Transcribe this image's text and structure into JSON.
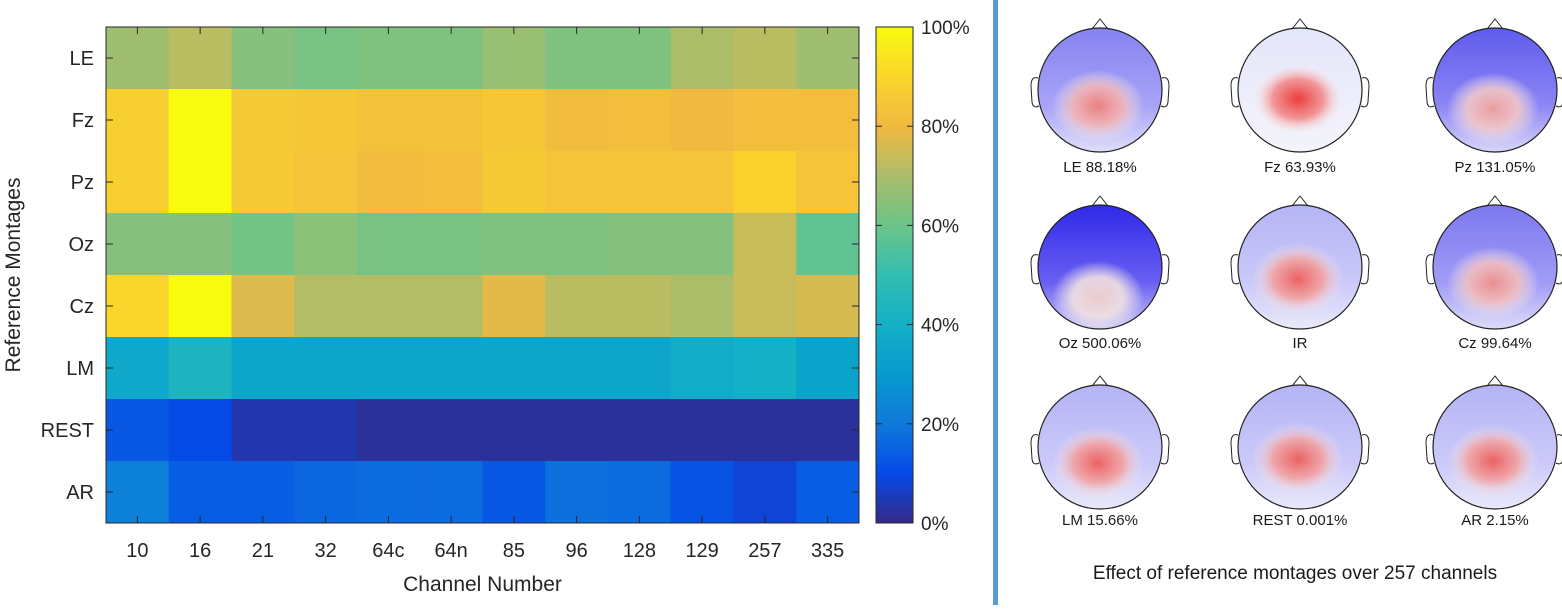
{
  "chart_data": {
    "type": "heatmap",
    "xlabel": "Channel Number",
    "ylabel": "Reference Montages",
    "categories_x": [
      "10",
      "16",
      "21",
      "32",
      "64c",
      "64n",
      "85",
      "96",
      "128",
      "129",
      "257",
      "335"
    ],
    "categories_y": [
      "LE",
      "Fz",
      "Pz",
      "Oz",
      "Cz",
      "LM",
      "REST",
      "AR"
    ],
    "values": [
      [
        68,
        72,
        64,
        62,
        63,
        63,
        67,
        63,
        63,
        70,
        72,
        68
      ],
      [
        88,
        100,
        86,
        85,
        83,
        83,
        85,
        81,
        82,
        80,
        82,
        82
      ],
      [
        88,
        100,
        86,
        84,
        81,
        82,
        86,
        84,
        84,
        84,
        89,
        84
      ],
      [
        64,
        64,
        61,
        65,
        62,
        62,
        63,
        63,
        64,
        64,
        74,
        58
      ],
      [
        90,
        100,
        77,
        71,
        71,
        71,
        78,
        72,
        72,
        70,
        74,
        76
      ],
      [
        36,
        43,
        35,
        35,
        35,
        35,
        35,
        35,
        35,
        38,
        40,
        34
      ],
      [
        13,
        10,
        4,
        4,
        2,
        2,
        2,
        2,
        2,
        2,
        2,
        2
      ],
      [
        22,
        14,
        14,
        16,
        17,
        17,
        13,
        18,
        17,
        12,
        8,
        14
      ]
    ],
    "colorbar": {
      "range": [
        0,
        100
      ],
      "tick_labels": [
        "0%",
        "20%",
        "40%",
        "60%",
        "80%",
        "100%"
      ]
    }
  },
  "topomaps": {
    "caption": "Effect of reference montages over 257 channels",
    "items": [
      {
        "label": "LE 88.18%",
        "ref": "LE",
        "intensity": 0.55,
        "bg": 0.55,
        "cy": 0.66
      },
      {
        "label": "Fz 63.93%",
        "ref": "Fz",
        "intensity": 1.0,
        "bg": 0.05,
        "cy": 0.62
      },
      {
        "label": "Pz 131.05%",
        "ref": "Pz",
        "intensity": 0.35,
        "bg": 0.75,
        "cy": 0.68
      },
      {
        "label": "Oz 500.06%",
        "ref": "Oz",
        "intensity": 0.05,
        "bg": 1.0,
        "cy": 0.75
      },
      {
        "label": "IR",
        "ref": "IR",
        "intensity": 0.75,
        "bg": 0.3,
        "cy": 0.64
      },
      {
        "label": "Cz 99.64%",
        "ref": "Cz",
        "intensity": 0.45,
        "bg": 0.6,
        "cy": 0.66
      },
      {
        "label": "LM 15.66%",
        "ref": "LM",
        "intensity": 0.75,
        "bg": 0.3,
        "cy": 0.66
      },
      {
        "label": "REST 0.001%",
        "ref": "REST",
        "intensity": 0.75,
        "bg": 0.3,
        "cy": 0.64
      },
      {
        "label": "AR 2.15%",
        "ref": "AR",
        "intensity": 0.75,
        "bg": 0.3,
        "cy": 0.65
      }
    ]
  }
}
